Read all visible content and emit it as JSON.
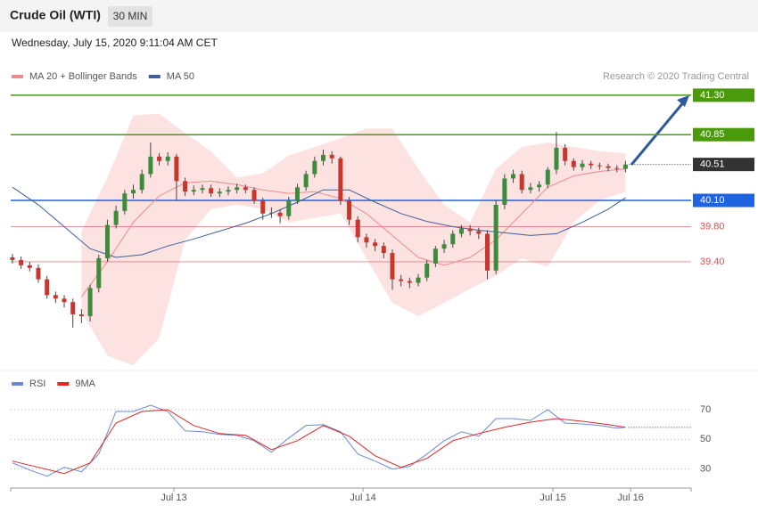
{
  "header": {
    "title": "Crude Oil (WTI)",
    "interval": "30 MIN",
    "timestamp": "Wednesday, July 15, 2020 9:11:04 AM CET",
    "credit": "Research © 2020 Trading Central"
  },
  "chart_data": [
    {
      "type": "candlestick",
      "xlim": [
        -0.2,
        78.6
      ],
      "ylim": [
        38.17,
        41.37
      ],
      "up_color": "#3c8c3c",
      "down_color": "#c8372d",
      "open": [
        39.45,
        39.42,
        39.36,
        39.33,
        39.2,
        39.02,
        38.98,
        38.94,
        38.8,
        38.78,
        39.1,
        39.44,
        39.82,
        39.98,
        40.18,
        40.22,
        40.4,
        40.6,
        40.55,
        40.6,
        40.32,
        40.2,
        40.22,
        40.24,
        40.18,
        40.2,
        40.22,
        40.25,
        40.22,
        40.1,
        39.95,
        39.96,
        39.92,
        40.1,
        40.25,
        40.4,
        40.55,
        40.62,
        40.58,
        40.1,
        39.88,
        39.68,
        39.62,
        39.58,
        39.5,
        39.2,
        39.18,
        39.16,
        39.22,
        39.38,
        39.55,
        39.6,
        39.72,
        39.78,
        39.75,
        39.72,
        39.3,
        40.05,
        40.35,
        40.4,
        40.22,
        40.25,
        40.28,
        40.45,
        40.7,
        40.55,
        40.48,
        40.52,
        40.5,
        40.49,
        40.47,
        40.46
      ],
      "high": [
        39.49,
        39.46,
        39.4,
        39.37,
        39.24,
        39.06,
        39.02,
        38.98,
        38.86,
        39.14,
        39.48,
        39.88,
        40.04,
        40.22,
        40.28,
        40.45,
        40.76,
        40.64,
        40.65,
        40.63,
        40.36,
        40.27,
        40.28,
        40.28,
        40.24,
        40.26,
        40.29,
        40.28,
        40.25,
        40.13,
        40.02,
        40.0,
        40.14,
        40.29,
        40.44,
        40.6,
        40.68,
        40.66,
        40.6,
        40.14,
        39.92,
        39.72,
        39.66,
        39.62,
        39.54,
        39.25,
        39.22,
        39.26,
        39.42,
        39.58,
        39.65,
        39.76,
        39.82,
        39.82,
        39.79,
        39.76,
        40.1,
        40.4,
        40.45,
        40.44,
        40.3,
        40.32,
        40.48,
        40.88,
        40.74,
        40.58,
        40.56,
        40.55,
        40.53,
        40.52,
        40.5,
        40.55
      ],
      "low": [
        39.38,
        39.32,
        39.29,
        39.16,
        38.98,
        38.93,
        38.88,
        38.65,
        38.7,
        38.72,
        39.05,
        39.4,
        39.78,
        39.94,
        40.12,
        40.18,
        40.36,
        40.5,
        40.5,
        40.1,
        40.15,
        40.16,
        40.18,
        40.14,
        40.14,
        40.16,
        40.18,
        40.18,
        40.06,
        39.88,
        39.9,
        39.84,
        39.88,
        40.06,
        40.21,
        40.36,
        40.5,
        40.52,
        40.05,
        39.82,
        39.62,
        39.56,
        39.52,
        39.44,
        39.08,
        39.12,
        39.1,
        39.12,
        39.18,
        39.34,
        39.5,
        39.56,
        39.68,
        39.7,
        39.66,
        39.2,
        39.26,
        40.0,
        40.3,
        40.18,
        40.18,
        40.2,
        40.24,
        40.4,
        40.5,
        40.44,
        40.44,
        40.46,
        40.45,
        40.43,
        40.42,
        40.42
      ],
      "close": [
        39.42,
        39.36,
        39.33,
        39.2,
        39.02,
        38.98,
        38.94,
        38.8,
        38.78,
        39.1,
        39.44,
        39.82,
        39.98,
        40.18,
        40.22,
        40.4,
        40.6,
        40.55,
        40.6,
        40.32,
        40.2,
        40.22,
        40.24,
        40.18,
        40.2,
        40.22,
        40.25,
        40.22,
        40.1,
        39.95,
        39.96,
        39.92,
        40.1,
        40.25,
        40.4,
        40.55,
        40.62,
        40.58,
        40.1,
        39.88,
        39.68,
        39.62,
        39.58,
        39.5,
        39.2,
        39.18,
        39.16,
        39.22,
        39.38,
        39.55,
        39.6,
        39.72,
        39.78,
        39.75,
        39.72,
        39.3,
        40.05,
        40.35,
        40.4,
        40.22,
        40.25,
        40.28,
        40.45,
        40.7,
        40.55,
        40.48,
        40.52,
        40.5,
        40.49,
        40.47,
        40.46,
        40.51
      ],
      "lines": [
        {
          "name": "MA 20 + Bollinger Bands",
          "color": "#f08a8a",
          "band_color": "#fde2e2",
          "x": [
            8,
            11,
            14,
            17,
            20,
            23,
            26,
            29,
            32,
            35,
            38,
            41,
            44,
            47,
            50,
            53,
            56,
            59,
            62,
            65,
            68,
            71
          ],
          "values": [
            39.0,
            39.4,
            39.85,
            40.15,
            40.3,
            40.32,
            40.28,
            40.22,
            40.18,
            40.2,
            40.12,
            39.95,
            39.7,
            39.45,
            39.36,
            39.45,
            39.65,
            39.95,
            40.25,
            40.38,
            40.43,
            40.46
          ],
          "upper": [
            39.75,
            40.36,
            41.07,
            41.09,
            40.87,
            40.66,
            40.36,
            40.41,
            40.61,
            40.71,
            40.81,
            40.92,
            40.92,
            40.46,
            40.05,
            39.85,
            40.46,
            40.71,
            40.76,
            40.71,
            40.66,
            40.64
          ],
          "lower": [
            38.83,
            38.33,
            38.22,
            38.53,
            39.65,
            40.0,
            40.05,
            40.0,
            39.85,
            39.9,
            39.95,
            39.44,
            38.93,
            38.78,
            38.93,
            39.09,
            39.24,
            39.44,
            39.34,
            39.85,
            40.1,
            40.2
          ]
        },
        {
          "name": "MA 50",
          "color": "#3d5f9a",
          "x": [
            0,
            3,
            6,
            9,
            12,
            15,
            18,
            21,
            24,
            27,
            30,
            33,
            36,
            39,
            42,
            45,
            48,
            51,
            54,
            57,
            60,
            63,
            66,
            69,
            71
          ],
          "values": [
            40.25,
            40.05,
            39.8,
            39.55,
            39.45,
            39.48,
            39.58,
            39.66,
            39.75,
            39.84,
            39.95,
            40.08,
            40.22,
            40.22,
            40.08,
            39.95,
            39.86,
            39.8,
            39.76,
            39.73,
            39.7,
            39.72,
            39.85,
            40.0,
            40.13
          ]
        }
      ],
      "levels": [
        {
          "value": 41.3,
          "label": "41.30",
          "color": "#4a9a0c",
          "boxed": true,
          "dotted": false
        },
        {
          "value": 40.85,
          "label": "40.85",
          "color": "#4a9a0c",
          "boxed": true,
          "dotted": false
        },
        {
          "value": 40.51,
          "label": "40.51",
          "color": "#333333",
          "boxed": true,
          "dotted": true
        },
        {
          "value": 40.1,
          "label": "40.10",
          "color": "#1f63e0",
          "boxed": true,
          "dotted": false
        },
        {
          "value": 39.8,
          "label": "39.80",
          "color": "#e05050",
          "boxed": false,
          "dotted": false
        },
        {
          "value": 39.4,
          "label": "39.40",
          "color": "#e05050",
          "boxed": false,
          "dotted": false
        }
      ]
    },
    {
      "type": "line",
      "xlim": [
        -0.2,
        78.6
      ],
      "ylim": [
        19,
        82
      ],
      "yticks": [
        30,
        50,
        70
      ],
      "grid": true,
      "xticks": [
        {
          "value": 18.7,
          "label": "Jul 13"
        },
        {
          "value": 40.6,
          "label": "Jul 14"
        },
        {
          "value": 62.6,
          "label": "Jul 15"
        },
        {
          "value": 71.6,
          "label": "Jul 16"
        }
      ],
      "series": [
        {
          "name": "RSI",
          "color": "#6a8ad8",
          "x": [
            0,
            2,
            4,
            6,
            8,
            10,
            12,
            14,
            16,
            18,
            20,
            22,
            24,
            26,
            28,
            30,
            32,
            34,
            36,
            38,
            40,
            42,
            44,
            46,
            48,
            50,
            52,
            54,
            56,
            58,
            60,
            62,
            64,
            66,
            68,
            70,
            71
          ],
          "values": [
            34.2,
            29.4,
            25.2,
            31.2,
            28.2,
            40.1,
            68.8,
            68.8,
            73.0,
            68.8,
            55.7,
            55.1,
            53.3,
            52.7,
            49.1,
            41.3,
            50.9,
            59.3,
            59.9,
            55.1,
            40.1,
            35.4,
            30.0,
            31.8,
            40.1,
            49.1,
            55.1,
            52.1,
            64.0,
            64.0,
            62.8,
            70.0,
            61.0,
            60.4,
            59.3,
            57.5,
            58.1
          ]
        },
        {
          "name": "9MA",
          "color": "#e02525",
          "x": [
            0,
            3,
            6,
            9,
            12,
            15,
            18,
            21,
            24,
            27,
            30,
            33,
            36,
            39,
            42,
            45,
            48,
            51,
            54,
            57,
            60,
            63,
            66,
            69,
            71
          ],
          "values": [
            35.4,
            31.2,
            27.0,
            34.2,
            61.0,
            68.8,
            70.0,
            59.3,
            53.9,
            52.7,
            43.1,
            49.1,
            59.3,
            52.1,
            39.0,
            31.2,
            37.2,
            49.1,
            53.9,
            58.1,
            61.6,
            64.0,
            62.2,
            59.9,
            58.1
          ]
        }
      ]
    }
  ]
}
